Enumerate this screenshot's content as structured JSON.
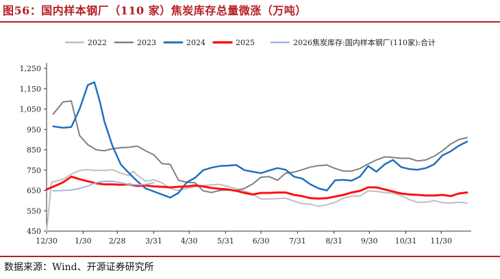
{
  "header": {
    "title": "图56：国内样本钢厂（110 家）焦炭库存总量微涨（万吨）"
  },
  "footer": {
    "source": "数据来源：Wind、开源证券研究所"
  },
  "chart_data": {
    "type": "line",
    "title": "",
    "xlabel": "",
    "ylabel": "",
    "ylim": [
      450,
      1250
    ],
    "yticks": [
      "450",
      "550",
      "650",
      "750",
      "850",
      "950",
      "1,050",
      "1,150",
      "1,250"
    ],
    "ytick_values": [
      450,
      550,
      650,
      750,
      850,
      950,
      1050,
      1150,
      1250
    ],
    "xtick_labels": [
      "12/30",
      "1/30",
      "2/28",
      "3/31",
      "4/30",
      "5/31",
      "6/30",
      "7/31",
      "8/31",
      "9/30",
      "10/31",
      "11/30"
    ],
    "xtick_positions": [
      0,
      4.43,
      8.57,
      13,
      17.29,
      21.71,
      26,
      30.43,
      34.86,
      39.14,
      43.57,
      47.86
    ],
    "x_range": [
      0,
      51.5
    ],
    "legend_position": "top",
    "grid": false,
    "series": [
      {
        "name": "2022",
        "color": "#bfbfbf",
        "width": 2,
        "x": [
          0,
          0.6,
          2,
          3,
          4,
          5,
          6,
          7,
          8,
          9,
          10,
          10.5,
          11,
          12,
          13,
          14,
          15,
          16,
          17,
          18,
          19,
          20,
          21,
          22,
          23,
          24,
          25,
          26,
          27,
          28,
          29,
          30,
          31,
          32,
          33,
          34,
          35,
          36,
          37,
          38,
          39,
          40,
          41,
          42,
          43,
          44,
          45,
          46,
          47,
          48,
          49,
          50,
          51
        ],
        "y": [
          450,
          690,
          705,
          730,
          748,
          752,
          748,
          748,
          752,
          735,
          722,
          745,
          725,
          695,
          702,
          688,
          660,
          650,
          660,
          668,
          674,
          678,
          680,
          670,
          658,
          648,
          632,
          608,
          608,
          610,
          612,
          598,
          585,
          582,
          572,
          580,
          592,
          612,
          622,
          622,
          648,
          645,
          640,
          636,
          625,
          605,
          592,
          592,
          600,
          590,
          588,
          592,
          588
        ]
      },
      {
        "name": "2023",
        "color": "#7f7f7f",
        "width": 2,
        "x": [
          0.8,
          2,
          3,
          4,
          5,
          6,
          7,
          8,
          9,
          10,
          11,
          12,
          13,
          14,
          15,
          16,
          17,
          18,
          19,
          20,
          21,
          22,
          23,
          24,
          25,
          26,
          27,
          28,
          29,
          30,
          31,
          32,
          33,
          34,
          35,
          36,
          37,
          38,
          39,
          40,
          41,
          42,
          43,
          44,
          45,
          46,
          47,
          48,
          49,
          50,
          51
        ],
        "y": [
          1025,
          1085,
          1090,
          920,
          875,
          850,
          845,
          855,
          860,
          862,
          868,
          845,
          825,
          782,
          778,
          700,
          690,
          688,
          648,
          640,
          650,
          652,
          650,
          660,
          682,
          715,
          718,
          700,
          735,
          740,
          752,
          765,
          772,
          775,
          758,
          745,
          745,
          758,
          780,
          800,
          815,
          812,
          808,
          808,
          795,
          800,
          818,
          845,
          878,
          900,
          910
        ]
      },
      {
        "name": "2024",
        "color": "#1f6fbf",
        "width": 2.5,
        "x": [
          0.8,
          2,
          3,
          4,
          5,
          5.8,
          6.5,
          7,
          8,
          9,
          10,
          11,
          12,
          13,
          14,
          15,
          16,
          17,
          18,
          19,
          20,
          21,
          22,
          23,
          24,
          25,
          26,
          27,
          28,
          29,
          30,
          31,
          32,
          33,
          34,
          35,
          36,
          37,
          38,
          39,
          40,
          41,
          42,
          43,
          44,
          45,
          46,
          47,
          48,
          49,
          50,
          51
        ],
        "y": [
          965,
          958,
          962,
          1050,
          1168,
          1182,
          1080,
          990,
          868,
          778,
          735,
          695,
          660,
          645,
          630,
          615,
          638,
          690,
          712,
          750,
          762,
          770,
          772,
          775,
          750,
          742,
          735,
          748,
          760,
          752,
          718,
          708,
          680,
          660,
          650,
          700,
          702,
          698,
          718,
          770,
          742,
          778,
          800,
          765,
          755,
          752,
          760,
          778,
          822,
          842,
          870,
          890
        ]
      },
      {
        "name": "2025",
        "color": "#ff1010",
        "width": 3,
        "x": [
          0,
          1,
          2,
          3,
          4,
          5,
          6,
          7,
          8,
          9,
          10,
          11,
          12,
          13,
          14,
          15,
          16,
          17,
          18,
          19,
          20,
          21,
          22,
          23,
          24,
          25,
          26,
          27,
          28,
          29,
          30,
          31,
          32,
          33,
          34,
          35,
          36,
          37,
          38,
          39,
          40,
          41,
          42,
          43,
          44,
          45,
          46,
          47,
          48,
          49,
          50,
          51
        ],
        "y": [
          655,
          672,
          690,
          718,
          705,
          695,
          685,
          680,
          680,
          678,
          680,
          672,
          675,
          670,
          668,
          665,
          668,
          670,
          675,
          670,
          662,
          658,
          655,
          648,
          638,
          630,
          638,
          638,
          640,
          640,
          628,
          622,
          612,
          610,
          612,
          620,
          628,
          640,
          648,
          665,
          665,
          655,
          645,
          635,
          630,
          628,
          625,
          625,
          628,
          622,
          635,
          640
        ]
      },
      {
        "name": "2026焦炭库存:国内样本钢厂(110家):合计",
        "color": "#9db8e0",
        "width": 2,
        "x": [
          0.8,
          2,
          3,
          4,
          5,
          6,
          7,
          8,
          9,
          10,
          11,
          12,
          13
        ],
        "y": [
          648,
          650,
          652,
          660,
          672,
          688,
          695,
          695,
          688,
          680,
          678,
          680,
          688
        ]
      }
    ]
  }
}
